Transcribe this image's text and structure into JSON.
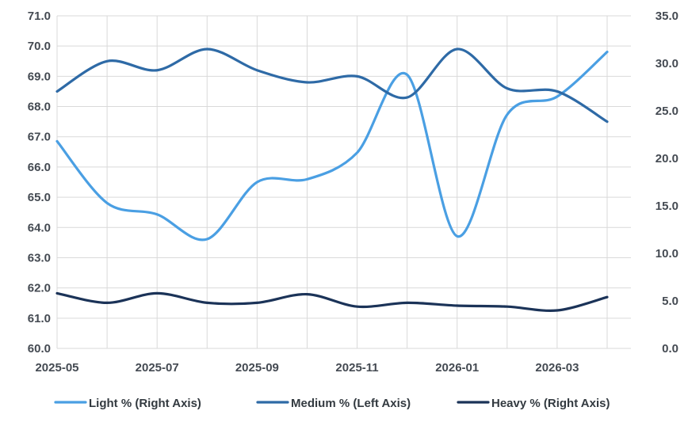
{
  "chart_data": {
    "type": "line",
    "title": "",
    "x": [
      "2025-05",
      "2025-06",
      "2025-07",
      "2025-08",
      "2025-09",
      "2025-10",
      "2025-11",
      "2025-12",
      "2026-01",
      "2026-02",
      "2026-03",
      "2026-04"
    ],
    "x_tick_labels": [
      "2025-05",
      "2025-07",
      "2025-09",
      "2025-11",
      "2026-01",
      "2026-03"
    ],
    "left_axis": {
      "ylim": [
        60.0,
        71.0
      ],
      "ticks": [
        "60.0",
        "61.0",
        "62.0",
        "63.0",
        "64.0",
        "65.0",
        "66.0",
        "67.0",
        "68.0",
        "69.0",
        "70.0",
        "71.0"
      ]
    },
    "right_axis": {
      "ylim": [
        0.0,
        35.0
      ],
      "ticks": [
        "0.0",
        "5.0",
        "10.0",
        "15.0",
        "20.0",
        "25.0",
        "30.0",
        "35.0"
      ]
    },
    "grid": true,
    "legend_position": "bottom",
    "series": [
      {
        "name": "Light % (Right  Axis)",
        "axis": "right",
        "color": "#4a9fe3",
        "values": [
          21.8,
          15.3,
          14.1,
          11.5,
          17.5,
          17.8,
          20.6,
          28.8,
          11.8,
          24.6,
          26.5,
          31.2
        ]
      },
      {
        "name": "Medium % (Left Axis)",
        "axis": "left",
        "color": "#2e6aa6",
        "values": [
          68.5,
          69.5,
          69.2,
          69.9,
          69.2,
          68.8,
          69.0,
          68.3,
          69.9,
          68.6,
          68.5,
          67.5
        ]
      },
      {
        "name": "Heavy % (Right  Axis)",
        "axis": "right",
        "color": "#1b3358",
        "values": [
          5.8,
          4.8,
          5.8,
          4.8,
          4.8,
          5.7,
          4.4,
          4.8,
          4.5,
          4.4,
          4.0,
          5.4
        ]
      }
    ]
  }
}
